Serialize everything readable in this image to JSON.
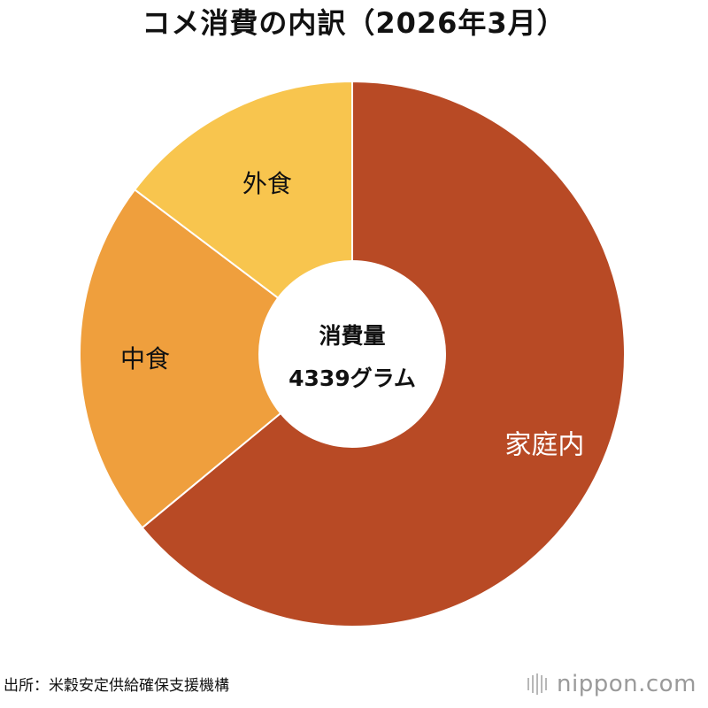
{
  "title": "コメ消費の内訳（2026年3月）",
  "source": "出所：米穀安定供給確保支援機構",
  "logo": "nippon.com",
  "center": {
    "label": "消費量",
    "value": "4339グラム"
  },
  "chart_data": {
    "type": "pie",
    "donut": true,
    "title": "コメ消費の内訳（2026年3月）",
    "slices": [
      {
        "label": "家庭内",
        "value": 64.0,
        "color": "#b84a25",
        "label_color": "#ffffff"
      },
      {
        "label": "中食",
        "value": 21.3,
        "color": "#ef9f3d",
        "label_color": "#111111"
      },
      {
        "label": "外食",
        "value": 14.7,
        "color": "#f8c54e",
        "label_color": "#111111"
      }
    ]
  }
}
